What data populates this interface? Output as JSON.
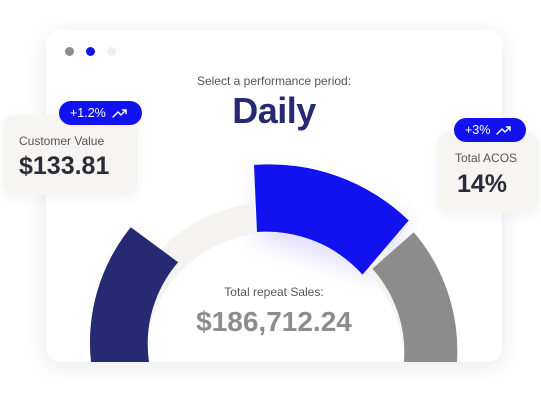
{
  "period": {
    "label": "Select a performance period:",
    "value": "Daily"
  },
  "sales": {
    "label": "Total repeat Sales:",
    "value": "$186,712.24"
  },
  "customer_value": {
    "title": "Customer Value",
    "value": "$133.81",
    "change": "+1.2%",
    "change_icon": "trend-up-icon"
  },
  "acos": {
    "title": "Total ACOS",
    "value": "14%",
    "change": "+3%",
    "change_icon": "trend-up-icon"
  },
  "colors": {
    "accent": "#1212f0",
    "navy": "#252a72",
    "grey": "#8c8c8c",
    "track": "#f4f3ef"
  }
}
